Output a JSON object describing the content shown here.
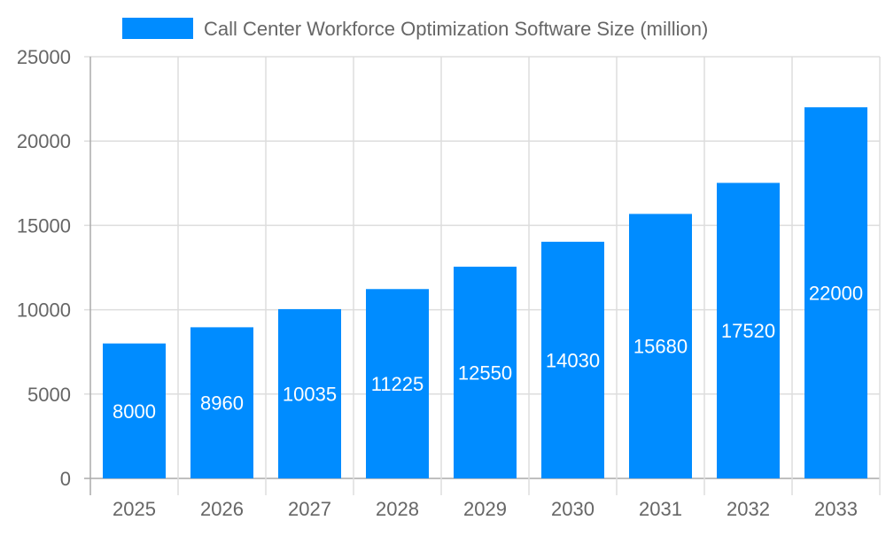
{
  "chart_data": {
    "type": "bar",
    "title": "",
    "xlabel": "",
    "ylabel": "",
    "categories": [
      "2025",
      "2026",
      "2027",
      "2028",
      "2029",
      "2030",
      "2031",
      "2032",
      "2033"
    ],
    "series": [
      {
        "name": "Call Center Workforce Optimization Software Size (million)",
        "values": [
          8000,
          8960,
          10035,
          11225,
          12550,
          14030,
          15680,
          17520,
          22000
        ]
      }
    ],
    "ylim": [
      0,
      25000
    ],
    "yticks": [
      "0",
      "5000",
      "10000",
      "15000",
      "20000",
      "25000"
    ],
    "grid": true,
    "legend": "top-center",
    "data_labels": true,
    "colors": {
      "bar": "#008cff",
      "grid": "#dddddd",
      "axis": "#aaaaaa",
      "text": "#666666",
      "label": "#ffffff"
    }
  }
}
